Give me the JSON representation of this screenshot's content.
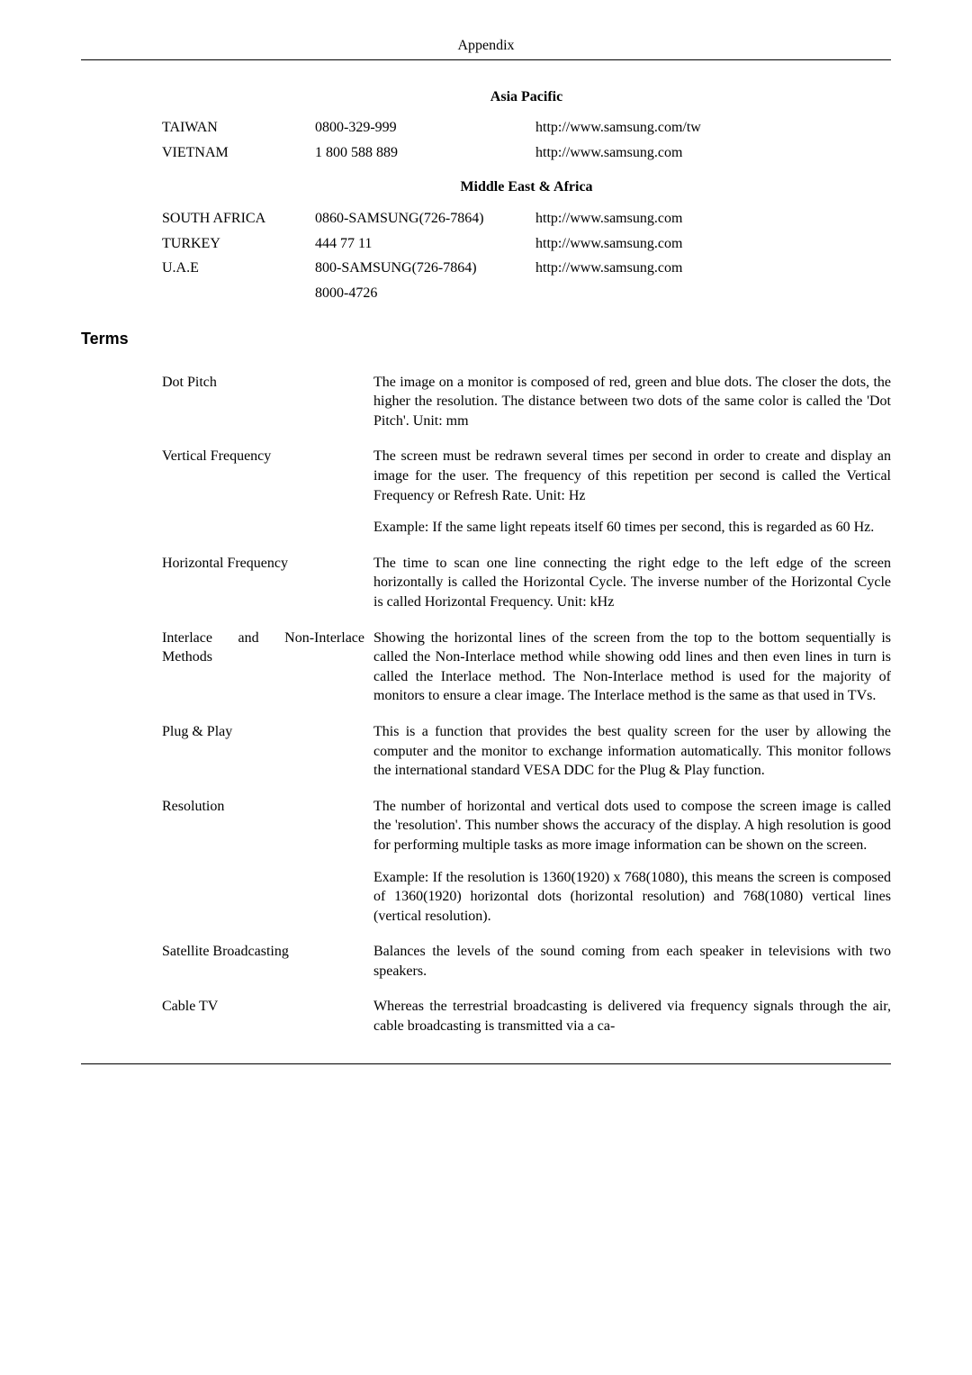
{
  "header": "Appendix",
  "sections": [
    {
      "title": "Asia Pacific",
      "rows": [
        {
          "country": "TAIWAN",
          "phone": "0800-329-999",
          "url": "http://www.samsung.com/tw"
        },
        {
          "country": "VIETNAM",
          "phone": "1 800 588 889",
          "url": "http://www.samsung.com"
        }
      ]
    },
    {
      "title": "Middle East & Africa",
      "rows": [
        {
          "country": "SOUTH AFRICA",
          "phone": "0860-SAMSUNG(726-7864)",
          "url": "http://www.samsung.com"
        },
        {
          "country": "TURKEY",
          "phone": "444 77 11",
          "url": "http://www.samsung.com"
        },
        {
          "country": "U.A.E",
          "phone": "800-SAMSUNG(726-7864)",
          "url": "http://www.samsung.com"
        },
        {
          "country": "",
          "phone": "8000-4726",
          "url": ""
        }
      ]
    }
  ],
  "terms_heading": "Terms",
  "terms": [
    {
      "name": "Dot Pitch",
      "justify": false,
      "paragraphs": [
        "The image on a monitor is composed of red, green and blue dots. The closer the dots, the higher the resolution. The distance between two dots of the same color is called the 'Dot Pitch'. Unit: mm"
      ]
    },
    {
      "name": "Vertical Frequency",
      "justify": false,
      "paragraphs": [
        "The screen must be redrawn several times per second in order to create and display an image for the user. The frequency of this repetition per second is called the Vertical Frequency or Refresh Rate. Unit: Hz",
        "Example: If the same light repeats itself 60 times per second, this is regarded as 60 Hz."
      ]
    },
    {
      "name": "Horizontal Frequency",
      "justify": false,
      "paragraphs": [
        "The time to scan one line connecting the right edge to the left edge of the screen horizontally is called the Horizontal Cycle. The inverse number of the Horizontal Cycle is called Horizontal Frequency. Unit: kHz"
      ]
    },
    {
      "name": "Interlace and Non-Interlace Methods",
      "justify": true,
      "paragraphs": [
        "Showing the horizontal lines of the screen from the top to the bottom sequentially is called the Non-Interlace method while showing odd lines and then even lines in turn is called the Interlace method. The Non-Interlace method is used for the majority of monitors to ensure a clear image. The Interlace method is the same as that used in TVs."
      ]
    },
    {
      "name": "Plug & Play",
      "justify": false,
      "paragraphs": [
        "This is a function that provides the best quality screen for the user by allowing the computer and the monitor to exchange information automatically. This monitor follows the international standard VESA DDC for the Plug & Play function."
      ]
    },
    {
      "name": "Resolution",
      "justify": false,
      "paragraphs": [
        "The number of horizontal and vertical dots used to compose the screen image is called the 'resolution'. This number shows the accuracy of the display. A high resolution is good for performing multiple tasks as more image information can be shown on the screen.",
        "Example: If the resolution is 1360(1920) x 768(1080), this means the screen is composed of 1360(1920) horizontal dots (horizontal resolution) and 768(1080) vertical lines (vertical resolution)."
      ]
    },
    {
      "name": "Satellite Broadcasting",
      "justify": false,
      "paragraphs": [
        "Balances the levels of the sound coming from each speaker in televisions with two speakers."
      ]
    },
    {
      "name": "Cable TV",
      "justify": false,
      "paragraphs": [
        "Whereas the terrestrial broadcasting is delivered via frequency signals through the air, cable broadcasting is transmitted via a ca-"
      ]
    }
  ]
}
